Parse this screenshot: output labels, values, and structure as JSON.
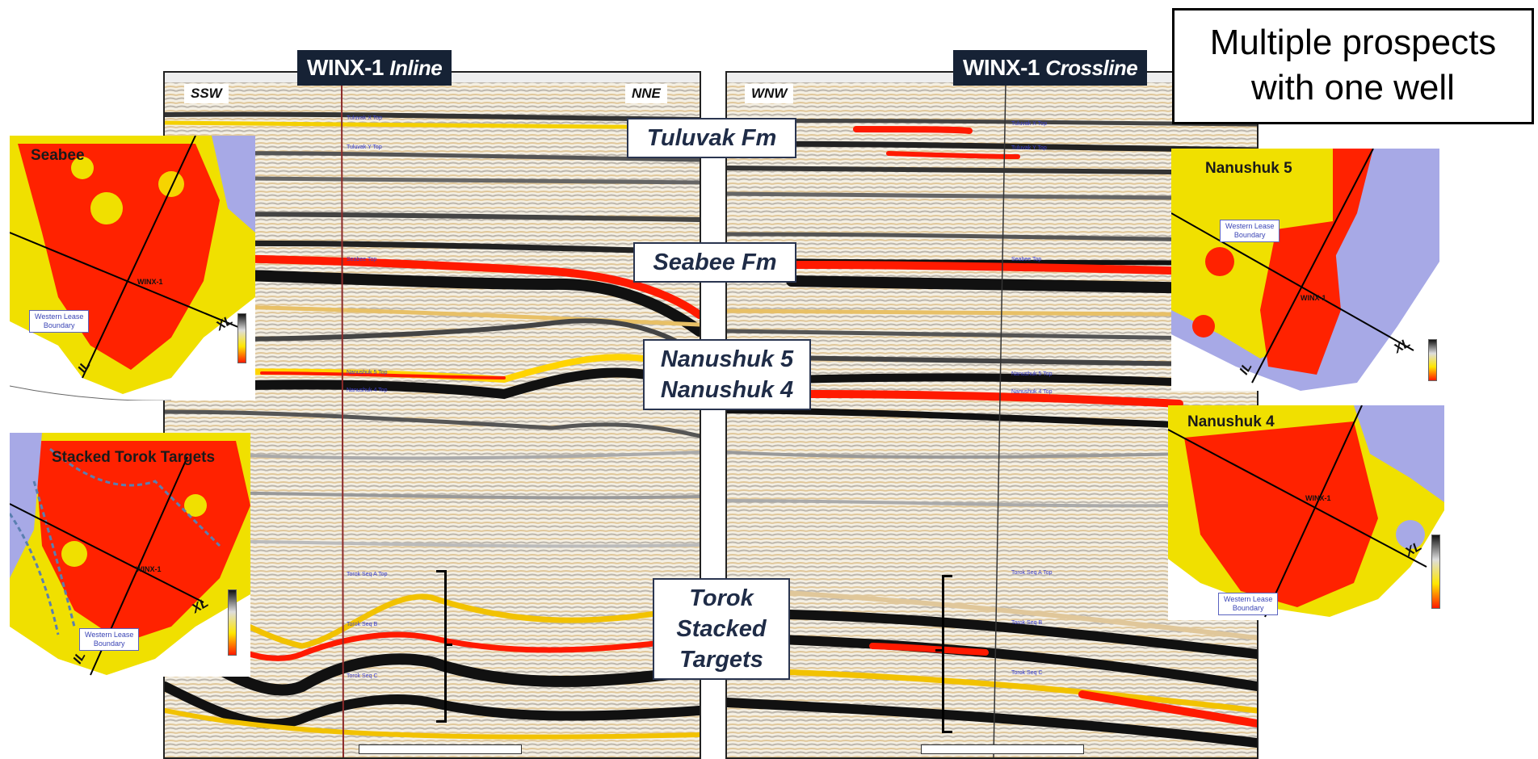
{
  "corner_text": {
    "line1": "Multiple prospects",
    "line2": "with one well"
  },
  "inline_panel": {
    "title_main": "WINX-1",
    "title_sub": "Inline",
    "dir_left": "SSW",
    "dir_right": "NNE"
  },
  "crossline_panel": {
    "title_main": "WINX-1",
    "title_sub": "Crossline",
    "dir_left": "WNW"
  },
  "formations": {
    "tuluvak": "Tuluvak Fm",
    "seabee": "Seabee Fm",
    "nanushuk5": "Nanushuk 5",
    "nanushuk4": "Nanushuk 4",
    "torok_1": "Torok",
    "torok_2": "Stacked",
    "torok_3": "Targets"
  },
  "maps": {
    "seabee": {
      "title": "Seabee",
      "well": "WINX-1",
      "xl": "XL",
      "il": "IL",
      "lease_1": "Western Lease",
      "lease_2": "Boundary"
    },
    "torok": {
      "title": "Stacked Torok Targets",
      "well": "WINX-1",
      "xl": "XL",
      "il": "IL",
      "lease_1": "Western Lease",
      "lease_2": "Boundary"
    },
    "nanushuk5": {
      "title": "Nanushuk 5",
      "well": "WINX-1",
      "xl": "XL",
      "il": "IL",
      "lease_1": "Western Lease",
      "lease_2": "Boundary"
    },
    "nanushuk4": {
      "title": "Nanushuk 4",
      "well": "WINX-1",
      "xl": "XL",
      "il": "IL",
      "lease_1": "Western Lease",
      "lease_2": "Boundary"
    }
  },
  "colors": {
    "amplitude_high": "#ff1a00",
    "amplitude_mid": "#ffe600",
    "amplitude_low": "#d9b98a",
    "trough": "#111111",
    "map_background_low": "#a7a9e6",
    "label_border": "#2a3550",
    "title_bg": "#162235"
  }
}
